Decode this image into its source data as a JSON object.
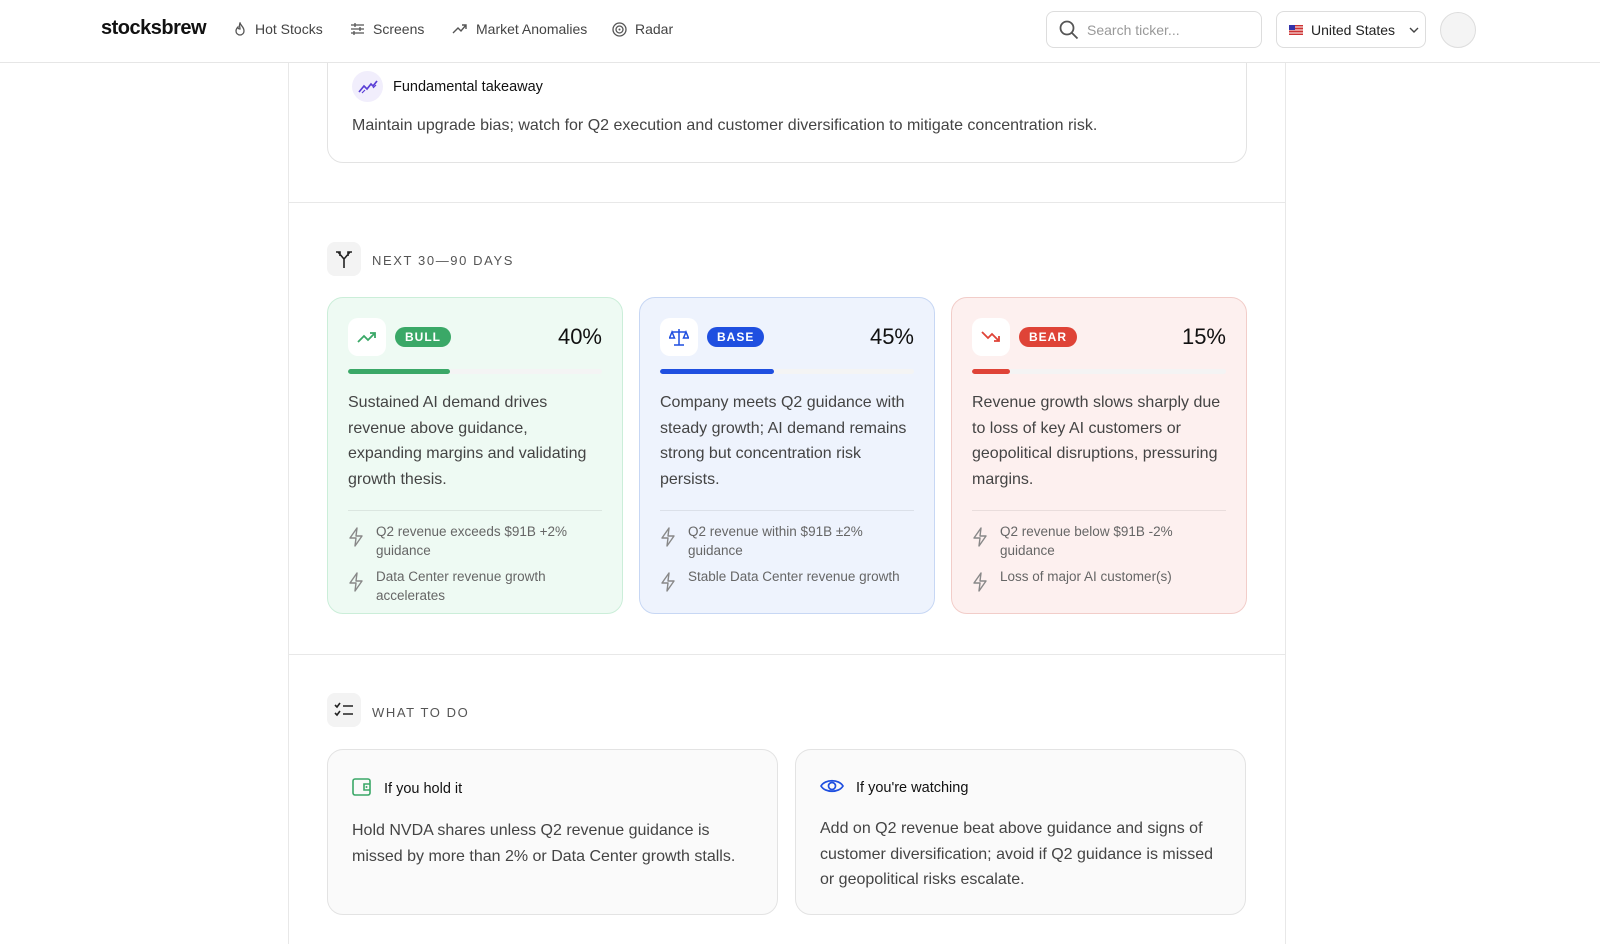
{
  "nav": {
    "logo": "stocksbrew",
    "links": [
      "Hot Stocks",
      "Screens",
      "Market Anomalies",
      "Radar"
    ],
    "search_placeholder": "Search ticker...",
    "country": "United States"
  },
  "takeaway": {
    "title": "Fundamental takeaway",
    "text": "Maintain upgrade bias; watch for Q2 execution and customer diversification to mitigate concentration risk."
  },
  "scenarios": {
    "heading": "NEXT 30—90 DAYS",
    "cards": [
      {
        "label": "BULL",
        "probability": {
          "value": 40,
          "label": "40%"
        },
        "description": "Sustained AI demand drives revenue above guidance, expanding margins and validating growth thesis.",
        "triggers": [
          "Q2 revenue exceeds $91B +2% guidance",
          "Data Center revenue growth accelerates"
        ]
      },
      {
        "label": "BASE",
        "probability": {
          "value": 45,
          "label": "45%"
        },
        "description": "Company meets Q2 guidance with steady growth; AI demand remains strong but concentration risk persists.",
        "triggers": [
          "Q2 revenue within $91B ±2% guidance",
          "Stable Data Center revenue growth"
        ]
      },
      {
        "label": "BEAR",
        "probability": {
          "value": 15,
          "label": "15%"
        },
        "description": "Revenue growth slows sharply due to loss of key AI customers or geopolitical disruptions, pressuring margins.",
        "triggers": [
          "Q2 revenue below $91B -2% guidance",
          "Loss of major AI customer(s)"
        ]
      }
    ]
  },
  "actions": {
    "heading": "WHAT TO DO",
    "cards": [
      {
        "title": "If you hold it",
        "text": "Hold NVDA shares unless Q2 revenue guidance is missed by more than 2% or Data Center growth stalls."
      },
      {
        "title": "If you're watching",
        "text": "Add on Q2 revenue beat above guidance and signs of customer diversification; avoid if Q2 guidance is missed or geopolitical risks escalate."
      }
    ]
  }
}
